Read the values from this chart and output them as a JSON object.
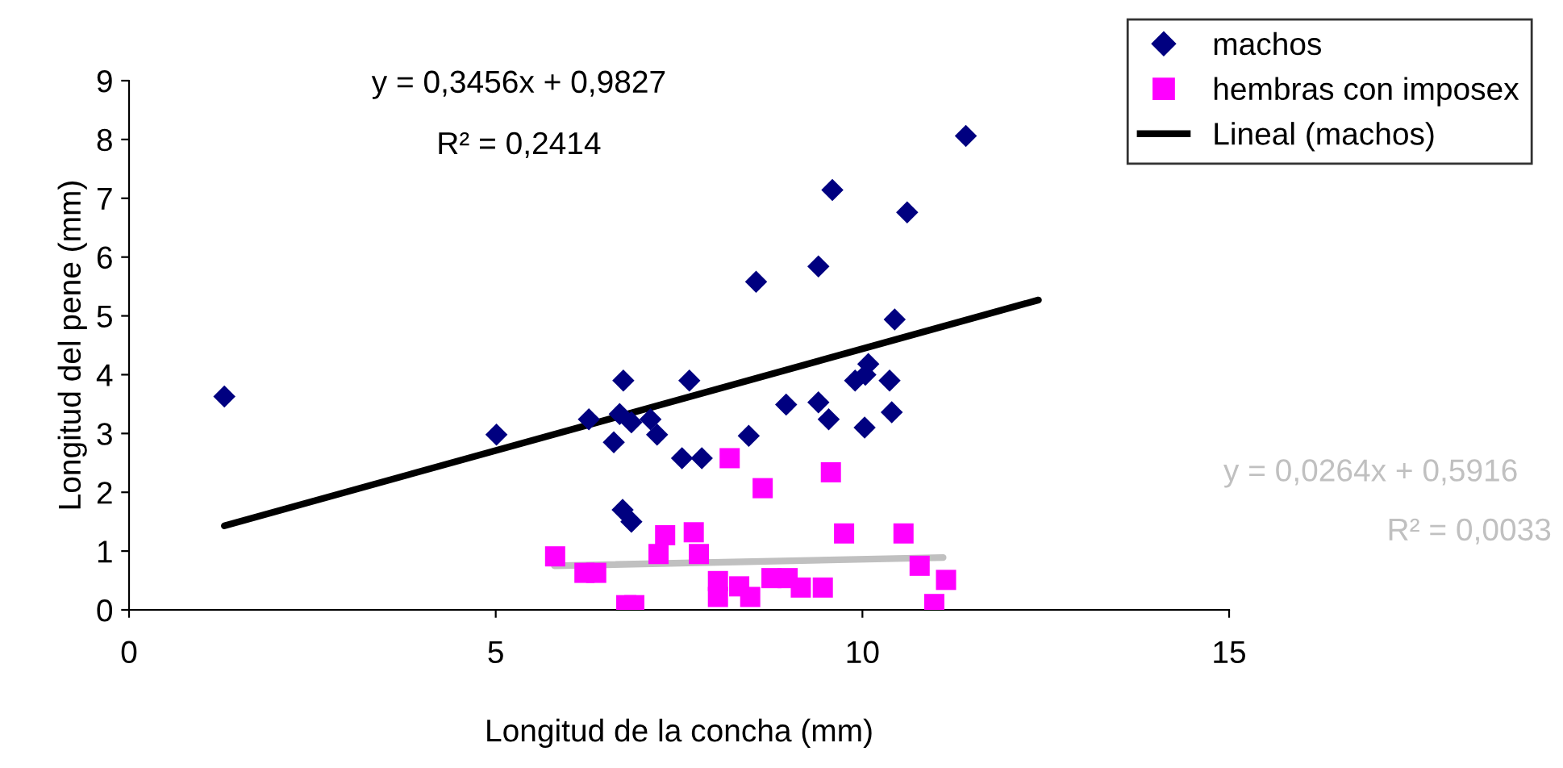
{
  "chart_data": {
    "type": "scatter",
    "xlabel": "Longitud de la concha (mm)",
    "ylabel": "Longitud del pene (mm)",
    "xlim": [
      0,
      15
    ],
    "xticks": [
      0,
      5,
      10,
      15
    ],
    "ylim": [
      0,
      9
    ],
    "yticks": [
      0,
      1,
      2,
      3,
      4,
      5,
      6,
      7,
      8,
      9
    ],
    "grid": false,
    "legend": "top right",
    "series": [
      {
        "name": "machos",
        "color": "#000080",
        "marker": "diamond",
        "x": [
          1.3,
          5.01,
          6.27,
          6.74,
          6.69,
          6.85,
          7.11,
          7.2,
          6.61,
          7.54,
          7.64,
          6.73,
          6.85,
          11.41,
          9.59,
          10.61,
          8.55,
          9.4,
          10.44,
          10.08,
          9.9,
          10.04,
          10.37,
          8.96,
          9.4,
          9.54,
          10.03,
          10.4,
          8.45,
          7.81
        ],
        "values": [
          3.63,
          2.98,
          3.24,
          3.9,
          3.33,
          3.19,
          3.24,
          2.98,
          2.85,
          2.58,
          3.9,
          1.7,
          1.5,
          8.06,
          7.14,
          6.76,
          5.58,
          5.84,
          4.94,
          4.18,
          3.9,
          4.0,
          3.9,
          3.49,
          3.53,
          3.24,
          3.1,
          3.36,
          2.96,
          2.58
        ]
      },
      {
        "name": "hembras con imposex",
        "color": "#ff00ff",
        "marker": "square",
        "x": [
          5.81,
          6.21,
          6.37,
          6.78,
          6.89,
          7.31,
          7.22,
          7.7,
          7.77,
          8.19,
          8.64,
          9.57,
          9.75,
          10.56,
          10.78,
          11.14,
          10.98,
          8.03,
          8.03,
          8.32,
          8.47,
          8.76,
          8.98,
          9.16,
          9.46
        ],
        "values": [
          0.91,
          0.63,
          0.63,
          0.08,
          0.08,
          1.27,
          0.95,
          1.32,
          0.95,
          2.58,
          2.07,
          2.34,
          1.3,
          1.3,
          0.75,
          0.51,
          0.1,
          0.49,
          0.22,
          0.4,
          0.22,
          0.54,
          0.54,
          0.38,
          0.38
        ]
      },
      {
        "name": "Lineal (machos)",
        "type": "line",
        "color": "#000000",
        "marker": "none",
        "x": [
          1.3,
          12.4
        ],
        "values": [
          1.43,
          5.27
        ]
      },
      {
        "type": "line",
        "color": "#c0c0c0",
        "marker": "none",
        "x": [
          5.8,
          11.1
        ],
        "values": [
          0.75,
          0.89
        ]
      }
    ],
    "annotations": [
      "y = 0,3456x + 0,9827",
      "R² = 0,2414",
      "y = 0,0264x + 0,5916",
      "R² = 0,0033"
    ]
  }
}
